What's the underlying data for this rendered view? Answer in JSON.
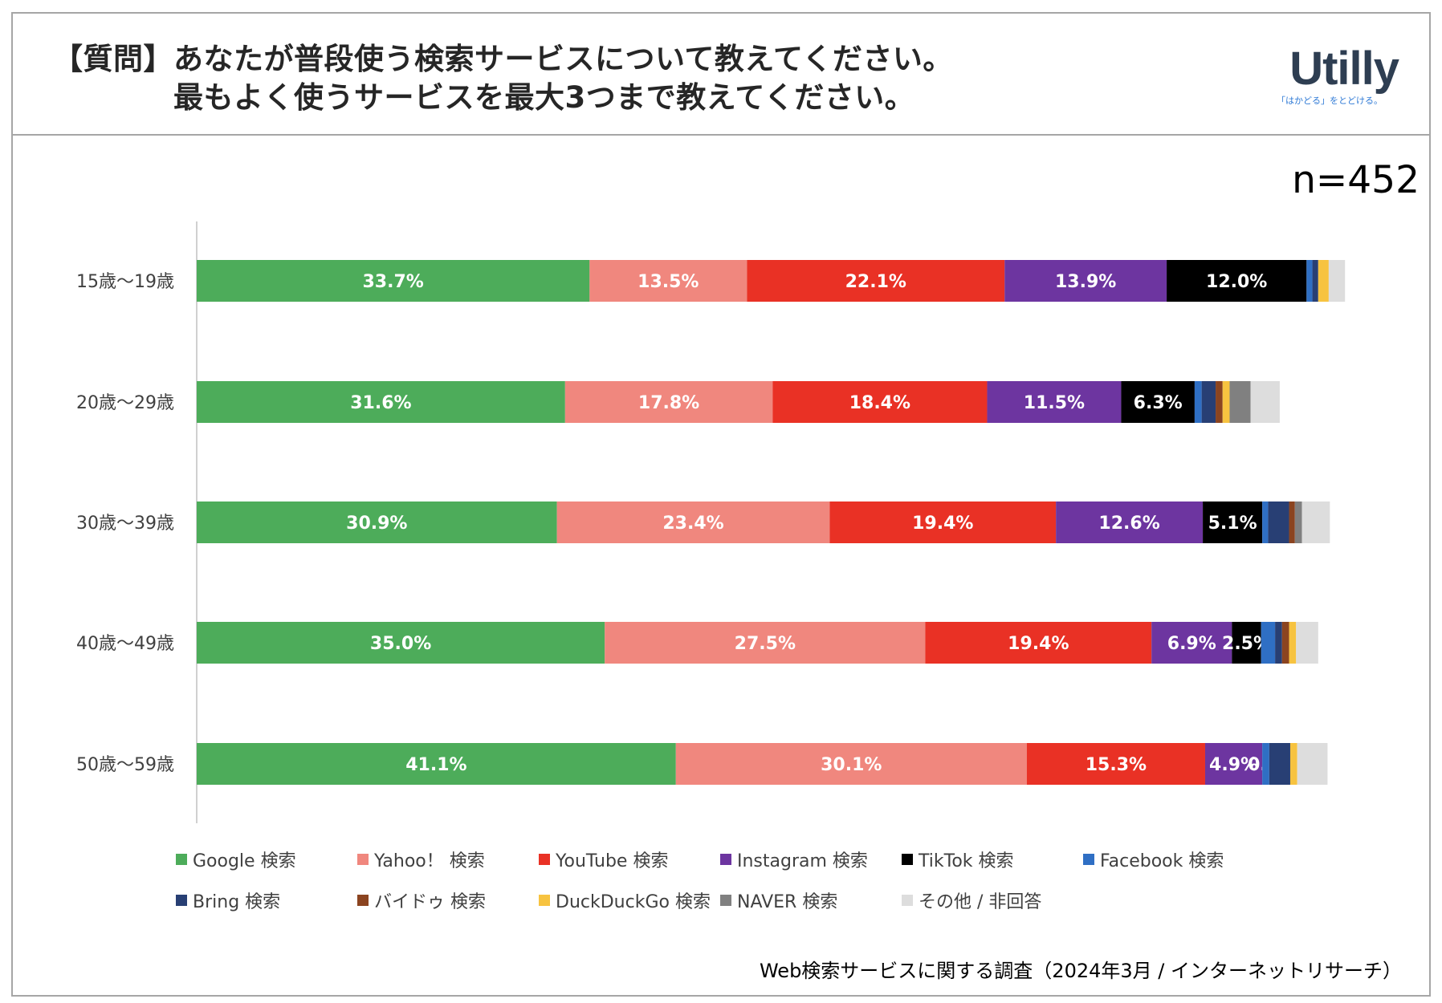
{
  "header": {
    "title_line1": "【質問】あなたが普段使う検索サービスについて教えてください。",
    "title_line2": "最もよく使うサービスを最大3つまで教えてください。"
  },
  "logo": {
    "text": "Utilly",
    "tagline": "「はかどる」をとどける。"
  },
  "sample_size": "n=452",
  "footnote": "Web検索サービスに関する調査（2024年3月 / インターネットリサーチ）",
  "colors": {
    "google": "#4dac5a",
    "yahoo": "#f0877e",
    "youtube": "#e93125",
    "instagram": "#6d35a0",
    "tiktok": "#000000",
    "facebook": "#2f6fc4",
    "bring": "#283f74",
    "baidu": "#8b4420",
    "duckduckgo": "#f7c340",
    "naver": "#808080",
    "other": "#dddddd"
  },
  "chart_data": {
    "type": "bar",
    "orientation": "horizontal",
    "stacked": true,
    "title": "【質問】あなたが普段使う検索サービスについて教えてください。最もよく使うサービスを最大3つまで教えてください。",
    "categories": [
      "15歳～19歳",
      "20歳～29歳",
      "30歳～39歳",
      "40歳～49歳",
      "50歳～59歳"
    ],
    "xlim": [
      0,
      100
    ],
    "legend_position": "bottom",
    "series": [
      {
        "key": "google",
        "name": "Google 検索",
        "values": [
          33.7,
          31.6,
          30.9,
          35.0,
          41.1
        ],
        "labels": [
          "33.7%",
          "31.6%",
          "30.9%",
          "35.0%",
          "41.1%"
        ]
      },
      {
        "key": "yahoo",
        "name": "Yahoo！ 検索",
        "values": [
          13.5,
          17.8,
          23.4,
          27.5,
          30.1
        ],
        "labels": [
          "13.5%",
          "17.8%",
          "23.4%",
          "27.5%",
          "30.1%"
        ]
      },
      {
        "key": "youtube",
        "name": "YouTube 検索",
        "values": [
          22.1,
          18.4,
          19.4,
          19.4,
          15.3
        ],
        "labels": [
          "22.1%",
          "18.4%",
          "19.4%",
          "19.4%",
          "15.3%"
        ]
      },
      {
        "key": "instagram",
        "name": "Instagram 検索",
        "values": [
          13.9,
          11.5,
          12.6,
          6.9,
          4.9
        ],
        "labels": [
          "13.9%",
          "11.5%",
          "12.6%",
          "6.9%",
          "4.9%"
        ]
      },
      {
        "key": "tiktok",
        "name": "TikTok 検索",
        "values": [
          12.0,
          6.3,
          5.1,
          2.5,
          0.0
        ],
        "labels": [
          "12.0%",
          "6.3%",
          "5.1%",
          "2.5%",
          "0.0%"
        ]
      },
      {
        "key": "facebook",
        "name": "Facebook 検索",
        "values": [
          0.5,
          0.6,
          0.5,
          1.2,
          0.6
        ],
        "labels": [
          "",
          "",
          "",
          "",
          ""
        ]
      },
      {
        "key": "bring",
        "name": "Bring 検索",
        "values": [
          0.5,
          1.2,
          1.8,
          0.6,
          1.8
        ],
        "labels": [
          "",
          "",
          "",
          "",
          ""
        ]
      },
      {
        "key": "baidu",
        "name": "バイドゥ 検索",
        "values": [
          0.0,
          0.6,
          0.5,
          0.6,
          0.0
        ],
        "labels": [
          "",
          "",
          "",
          "",
          ""
        ]
      },
      {
        "key": "duckduckgo",
        "name": "DuckDuckGo 検索",
        "values": [
          0.9,
          0.6,
          0.0,
          0.6,
          0.6
        ],
        "labels": [
          "",
          "",
          "",
          "",
          ""
        ]
      },
      {
        "key": "naver",
        "name": "NAVER 検索",
        "values": [
          0.0,
          1.8,
          0.6,
          0.0,
          0.0
        ],
        "labels": [
          "",
          "",
          "",
          "",
          ""
        ]
      },
      {
        "key": "other",
        "name": "その他 / 非回答",
        "values": [
          1.4,
          2.5,
          2.4,
          1.9,
          2.6
        ],
        "labels": [
          "",
          "",
          "",
          "",
          ""
        ]
      }
    ]
  }
}
